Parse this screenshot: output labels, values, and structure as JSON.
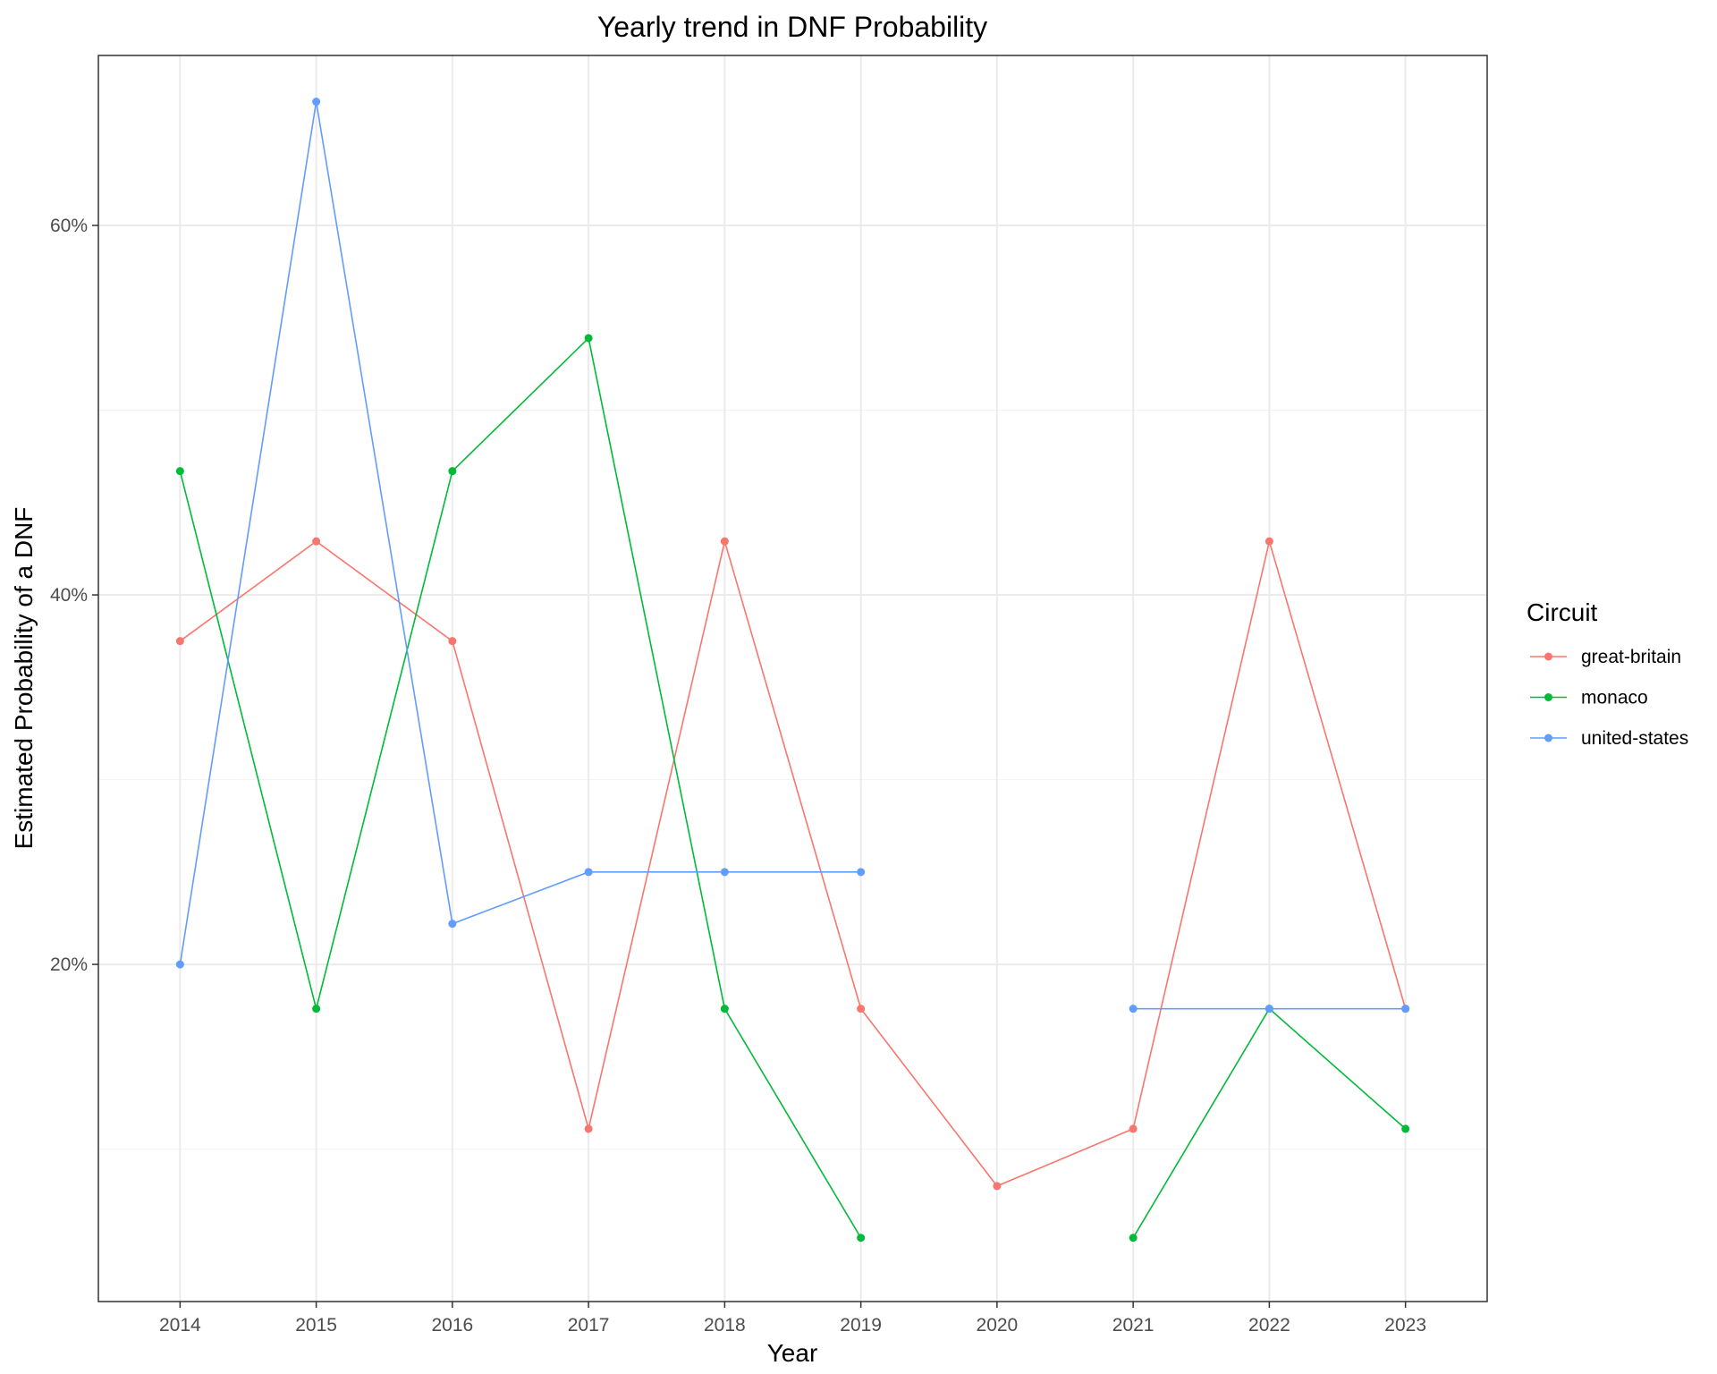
{
  "chart_data": {
    "type": "line",
    "title": "Yearly trend in DNF Probability",
    "xlabel": "Year",
    "ylabel": "Estimated Probability of a DNF",
    "x": [
      2014,
      2015,
      2016,
      2017,
      2018,
      2019,
      2020,
      2021,
      2022,
      2023
    ],
    "xlim": [
      2013.4,
      2023.6
    ],
    "ylim": [
      0.0175,
      0.692
    ],
    "y_ticks": [
      0.2,
      0.4,
      0.6
    ],
    "y_tick_labels": [
      "20%",
      "40%",
      "60%"
    ],
    "y_minor_ticks": [
      0.1,
      0.3,
      0.5
    ],
    "grid": true,
    "legend": {
      "title": "Circuit",
      "position": "right"
    },
    "series": [
      {
        "name": "great-britain",
        "color": "#F8766D",
        "values": [
          0.375,
          0.429,
          0.375,
          0.111,
          0.429,
          0.176,
          0.08,
          0.111,
          0.429,
          0.176
        ]
      },
      {
        "name": "monaco",
        "color": "#00BA38",
        "values": [
          0.467,
          0.176,
          0.467,
          0.539,
          0.176,
          0.052,
          null,
          0.052,
          0.176,
          0.111
        ]
      },
      {
        "name": "united-states",
        "color": "#619CFF",
        "values": [
          0.2,
          0.667,
          0.222,
          0.25,
          0.25,
          0.25,
          null,
          0.176,
          0.176,
          0.176
        ]
      }
    ]
  }
}
